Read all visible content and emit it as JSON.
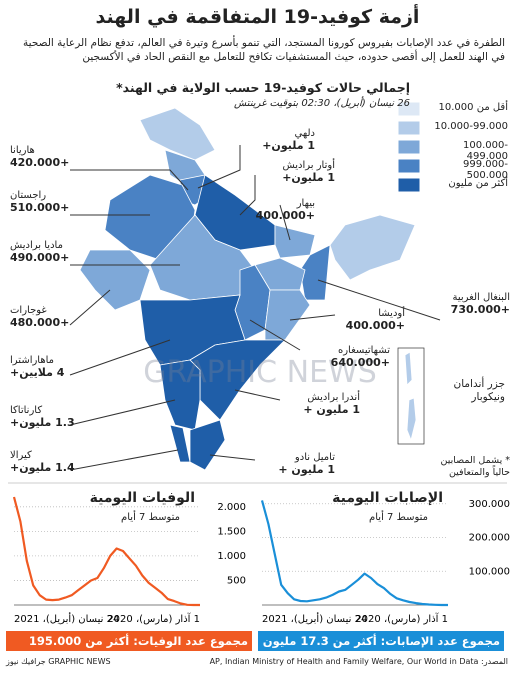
{
  "header": {
    "title": "أزمة كوفيد-19 المتفاقمة في الهند",
    "subtitle": "الطفرة في عدد الإصابات بفيروس كورونا المستجد، التي تنمو بأسرع وتيرة في العالم، تدفع نظام الرعاية الصحية في الهند للعمل إلى أقصى حدوده، حيث المستشفيات تكافح للتعامل مع النقص الحاد في الأكسجين"
  },
  "map": {
    "title": "إجمالي حالات كوفيد-19 حسب الولاية في الهند*",
    "subtitle": "26 نيسان (أبريل)، 02:30 بتوقيت غرينتش",
    "legend": [
      {
        "label": "أقل من 10.000",
        "color": "#dde8f5"
      },
      {
        "label": "10.000-99.000",
        "color": "#b3cce9"
      },
      {
        "label": "100.000-499.000",
        "color": "#7ea8d8"
      },
      {
        "label": "999.000-500.000",
        "color": "#4a82c4"
      },
      {
        "label": "أكثر من مليون",
        "color": "#1f5ea8"
      }
    ],
    "states": [
      {
        "name": "دلهي",
        "cases": "1 مليون+"
      },
      {
        "name": "أوتار براديش",
        "cases": "1 مليون+"
      },
      {
        "name": "بيهار",
        "cases": "+400.000"
      },
      {
        "name": "هاريانا",
        "cases": "+420.000"
      },
      {
        "name": "راجستان",
        "cases": "+510.000"
      },
      {
        "name": "ماديا براديش",
        "cases": "+490.000"
      },
      {
        "name": "غوجارات",
        "cases": "+480.000"
      },
      {
        "name": "ماهاراشترا",
        "cases": "4 ملايين+"
      },
      {
        "name": "كارناتاكا",
        "cases": "1.3 مليون+"
      },
      {
        "name": "كيرالا",
        "cases": "1.4 مليون+"
      },
      {
        "name": "تاميل نادو",
        "cases": "1 مليون +"
      },
      {
        "name": "أندرا براديش",
        "cases": "1 مليون +"
      },
      {
        "name": "تشهاتيسغاره",
        "cases": "+640.000"
      },
      {
        "name": "أوديشا",
        "cases": "+400.000"
      },
      {
        "name": "البنغال الغربية",
        "cases": "+730.000"
      }
    ],
    "islands": "جزر أندامان ونيكوبار",
    "note": "* يشمل المصابين حالياً والمتعافين"
  },
  "watermark": "GRAPHIC NEWS",
  "chart_data": [
    {
      "type": "line",
      "title": "الوفيات اليومية",
      "subtitle": "متوسط 7 أيام",
      "color": "#f05a22",
      "categories": [
        "1 آذار (مارس)، 2020",
        null,
        null,
        null,
        null,
        null,
        null,
        null,
        null,
        null,
        null,
        null,
        null,
        null,
        null,
        null,
        null,
        null,
        null,
        null,
        null,
        null,
        null,
        null,
        null,
        null,
        null,
        null,
        null,
        "24 نيسان (أبريل)، 2021"
      ],
      "values": [
        0,
        0,
        5,
        30,
        80,
        120,
        250,
        350,
        450,
        600,
        800,
        950,
        1100,
        1150,
        1000,
        750,
        550,
        500,
        400,
        300,
        200,
        150,
        110,
        100,
        110,
        200,
        400,
        900,
        1700,
        2200
      ],
      "ylim": [
        0,
        2200
      ],
      "yticks": [
        500,
        {
          "value": 1000,
          "label": "1.000"
        },
        {
          "value": 1500,
          "label": "1.500"
        },
        {
          "value": 2000,
          "label": "2.000"
        }
      ],
      "total": "مجموع عدد الوفيات: أكثر من 195.000"
    },
    {
      "type": "line",
      "title": "الإصابات اليومية",
      "subtitle": "متوسط 7 أيام",
      "color": "#1a8fd8",
      "categories": [
        "1 آذار (مارس)، 2020",
        null,
        null,
        null,
        null,
        null,
        null,
        null,
        null,
        null,
        null,
        null,
        null,
        null,
        null,
        null,
        null,
        null,
        null,
        null,
        null,
        null,
        null,
        null,
        null,
        null,
        null,
        null,
        null,
        "24 نيسان (أبريل)، 2021"
      ],
      "values": [
        0,
        0,
        500,
        1500,
        3000,
        5500,
        9000,
        14000,
        20000,
        33000,
        50000,
        62000,
        80000,
        93000,
        75000,
        60000,
        45000,
        40000,
        30000,
        22000,
        17000,
        14000,
        11000,
        12000,
        17000,
        35000,
        60000,
        150000,
        240000,
        310000
      ],
      "ylim": [
        0,
        320000
      ],
      "yticks": [
        {
          "value": 100000,
          "label": "100.000"
        },
        {
          "value": 200000,
          "label": "200.000"
        },
        {
          "value": 300000,
          "label": "300.000"
        }
      ],
      "total": "مجموع عدد الإصابات: أكثر من 17.3 مليون"
    }
  ],
  "footer": {
    "source": "المصدر: AP, Indian Ministry of Health and Family Welfare, Our World in Data",
    "brand": "GRAPHIC NEWS جرافيك نيوز"
  }
}
